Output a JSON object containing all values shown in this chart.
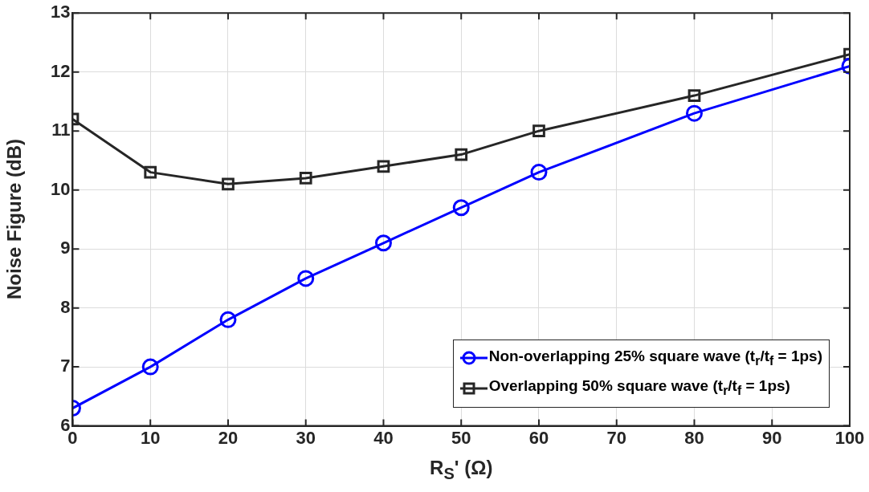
{
  "chart_data": {
    "type": "line",
    "xlabel": "R$_{S}$' (Ω)",
    "ylabel": "Noise Figure (dB)",
    "x": [
      0,
      10,
      20,
      30,
      40,
      50,
      60,
      80,
      100
    ],
    "series": [
      {
        "name": "Non-overlapping 25% square wave (t$_{r}$/t$_{f}$ = 1ps)",
        "color": "#0000ff",
        "marker": "circle",
        "values": [
          6.3,
          7.0,
          7.8,
          8.5,
          9.1,
          9.7,
          10.3,
          11.3,
          12.1
        ]
      },
      {
        "name": "Overlapping 50% square wave (t$_{r}$/t$_{f}$ = 1ps)",
        "color": "#262626",
        "marker": "square",
        "values": [
          11.2,
          10.3,
          10.1,
          10.2,
          10.4,
          10.6,
          11.0,
          11.6,
          12.3
        ]
      }
    ],
    "xlim": [
      0,
      100
    ],
    "xticks": [
      0,
      10,
      20,
      30,
      40,
      50,
      60,
      70,
      80,
      90,
      100
    ],
    "ylim": [
      6,
      13
    ],
    "yticks": [
      6,
      7,
      8,
      9,
      10,
      11,
      12,
      13
    ],
    "grid": true,
    "legend": "right",
    "line_style": "solid"
  }
}
